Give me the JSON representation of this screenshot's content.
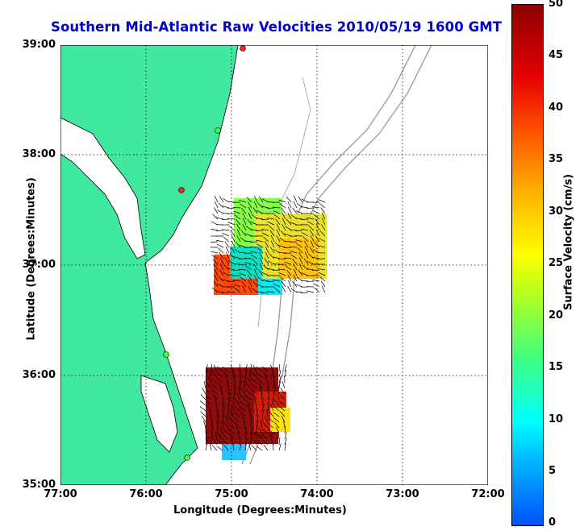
{
  "title": "Southern Mid-Atlantic Raw Velocities 2010/05/19 1600 GMT",
  "xlabel": "Longitude (Degrees:Minutes)",
  "ylabel": "Latitude (Degrees:Minutes)",
  "x_ticks": [
    "77:00",
    "76:00",
    "75:00",
    "74:00",
    "73:00",
    "72:00"
  ],
  "y_ticks": [
    "39:00",
    "38:00",
    "37:00",
    "36:00",
    "35:00"
  ],
  "colorbar": {
    "label": "Surface Velocity (cm/s)",
    "ticks": [
      "50",
      "45",
      "40",
      "35",
      "30",
      "25",
      "20",
      "15",
      "10",
      "5",
      "0"
    ],
    "range": [
      0,
      50
    ]
  },
  "colors": {
    "land": "#40e8a0",
    "title": "#0000cc",
    "bathymetry": "#999999"
  }
}
